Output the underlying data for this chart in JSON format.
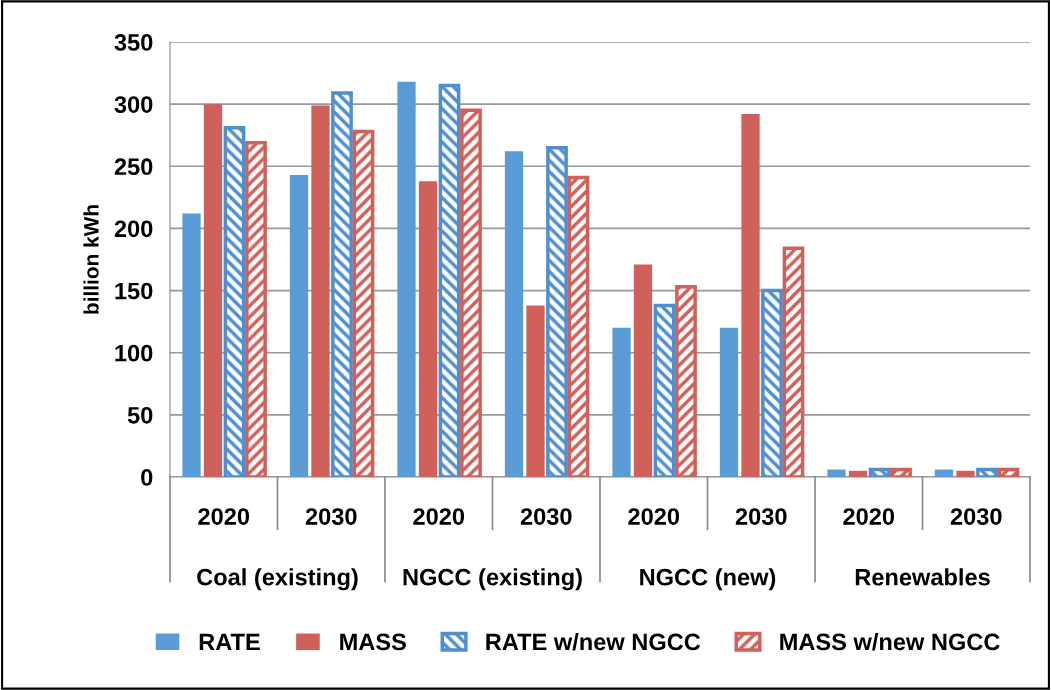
{
  "chart_data": {
    "type": "bar",
    "ylabel": "billion kWh",
    "categories": [
      "2020",
      "2030",
      "2020",
      "2030",
      "2020",
      "2030",
      "2020",
      "2030"
    ],
    "annotations": [
      "Coal (existing)",
      "NGCC (existing)",
      "NGCC (new)",
      "Renewables"
    ],
    "series": [
      {
        "name": "RATE",
        "color": "#5b9bd5",
        "values": [
          212,
          243,
          318,
          262,
          120,
          120,
          6,
          6
        ]
      },
      {
        "name": "MASS",
        "color": "#d0605a",
        "values": [
          300,
          299,
          238,
          138,
          171,
          292,
          5,
          5
        ]
      },
      {
        "name": "RATE w/new NGCC",
        "color": "#4f8fcf",
        "values": [
          281,
          309,
          315,
          265,
          138,
          150,
          6,
          6
        ]
      },
      {
        "name": "MASS w/new NGCC",
        "color": "#d0605a",
        "values": [
          269,
          278,
          295,
          241,
          153,
          184,
          6,
          6
        ]
      }
    ],
    "ylim": [
      0,
      350
    ],
    "yticks": [
      0,
      50,
      100,
      150,
      200,
      250,
      300,
      350
    ],
    "grid": "y",
    "legend": "bottom"
  }
}
